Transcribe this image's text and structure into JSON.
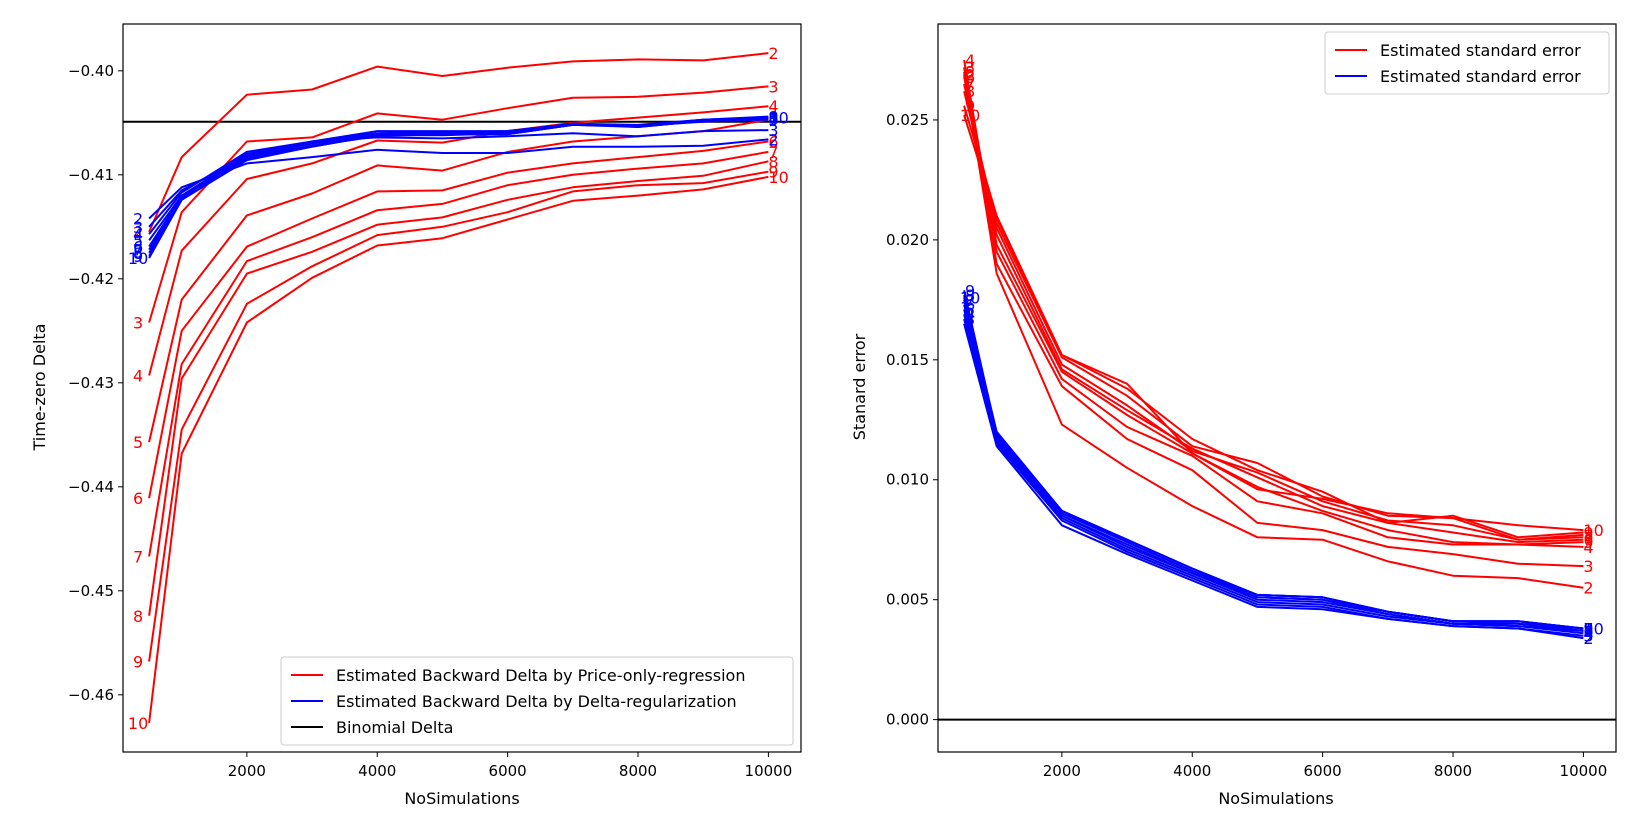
{
  "chart_data": [
    {
      "type": "line",
      "title": "",
      "xlabel": "NoSimulations",
      "ylabel": "Time-zero Delta",
      "xlim": [
        100,
        10500
      ],
      "ylim": [
        -0.4655,
        -0.3955
      ],
      "grid": false,
      "legend_position": "lower-right",
      "x": [
        500,
        1000,
        2000,
        3000,
        4000,
        5000,
        6000,
        7000,
        8000,
        9000,
        10000
      ],
      "xticks": [
        2000,
        4000,
        6000,
        8000,
        10000
      ],
      "yticks": [
        -0.46,
        -0.45,
        -0.44,
        -0.43,
        -0.42,
        -0.41,
        -0.4
      ],
      "ytick_labels": [
        "−0.46",
        "−0.45",
        "−0.44",
        "−0.43",
        "−0.42",
        "−0.41",
        "−0.40"
      ],
      "colors": {
        "price_regression": "#ff0000",
        "delta_regularization": "#0000ff",
        "binomial": "#000000"
      },
      "legend": [
        {
          "label": "Estimated Backward Delta by Price-only-regression",
          "color": "#ff0000"
        },
        {
          "label": "Estimated Backward Delta by Delta-regularization",
          "color": "#0000ff"
        },
        {
          "label": "Binomial Delta",
          "color": "#000000"
        }
      ],
      "hline": {
        "y": -0.4049,
        "color": "#000000"
      },
      "series": [
        {
          "name": "2",
          "color": "#ff0000",
          "label_start": "2",
          "label_end": "2",
          "values": [
            -0.4155,
            -0.4083,
            -0.4023,
            -0.4018,
            -0.3996,
            -0.4005,
            -0.3997,
            -0.3991,
            -0.3989,
            -0.399,
            -0.3983
          ]
        },
        {
          "name": "3",
          "color": "#ff0000",
          "label_start": "3",
          "label_end": "3",
          "values": [
            -0.4242,
            -0.4136,
            -0.4068,
            -0.4064,
            -0.4041,
            -0.4047,
            -0.4036,
            -0.4026,
            -0.4025,
            -0.4021,
            -0.4015
          ]
        },
        {
          "name": "4",
          "color": "#ff0000",
          "label_start": "4",
          "label_end": "4",
          "values": [
            -0.4293,
            -0.4173,
            -0.4104,
            -0.4089,
            -0.4067,
            -0.4069,
            -0.4058,
            -0.405,
            -0.4045,
            -0.404,
            -0.4034
          ]
        },
        {
          "name": "5",
          "color": "#ff0000",
          "label_start": "5",
          "label_end": "5",
          "values": [
            -0.4357,
            -0.422,
            -0.4139,
            -0.4118,
            -0.4091,
            -0.4096,
            -0.4078,
            -0.4068,
            -0.4063,
            -0.4058,
            -0.4047
          ]
        },
        {
          "name": "6",
          "color": "#ff0000",
          "label_start": "6",
          "label_end": "6",
          "values": [
            -0.4411,
            -0.425,
            -0.4169,
            -0.4142,
            -0.4116,
            -0.4115,
            -0.4098,
            -0.4089,
            -0.4083,
            -0.4077,
            -0.4068
          ]
        },
        {
          "name": "7",
          "color": "#ff0000",
          "label_start": "7",
          "label_end": "7",
          "values": [
            -0.4467,
            -0.4282,
            -0.4183,
            -0.416,
            -0.4134,
            -0.4128,
            -0.411,
            -0.41,
            -0.4094,
            -0.4089,
            -0.4078
          ]
        },
        {
          "name": "8",
          "color": "#ff0000",
          "label_start": "8",
          "label_end": "8",
          "values": [
            -0.4524,
            -0.4296,
            -0.4195,
            -0.4174,
            -0.4148,
            -0.4141,
            -0.4124,
            -0.4112,
            -0.4106,
            -0.4101,
            -0.4087
          ]
        },
        {
          "name": "9",
          "color": "#ff0000",
          "label_start": "9",
          "label_end": "9",
          "values": [
            -0.4568,
            -0.4345,
            -0.4224,
            -0.4188,
            -0.4158,
            -0.415,
            -0.4136,
            -0.4116,
            -0.411,
            -0.4108,
            -0.4097
          ]
        },
        {
          "name": "10",
          "color": "#ff0000",
          "label_start": "10",
          "label_end": "10",
          "values": [
            -0.4627,
            -0.4368,
            -0.4242,
            -0.4199,
            -0.4168,
            -0.4161,
            -0.4143,
            -0.4125,
            -0.412,
            -0.4114,
            -0.4102
          ]
        },
        {
          "name": "2",
          "color": "#0000ff",
          "label_start": "2",
          "label_end": "2",
          "values": [
            -0.4142,
            -0.4112,
            -0.4089,
            -0.4083,
            -0.4076,
            -0.4079,
            -0.4079,
            -0.4073,
            -0.4073,
            -0.4072,
            -0.4066
          ]
        },
        {
          "name": "3",
          "color": "#0000ff",
          "label_start": "3",
          "label_end": "3",
          "values": [
            -0.415,
            -0.4115,
            -0.4082,
            -0.4068,
            -0.4064,
            -0.4065,
            -0.4063,
            -0.406,
            -0.4063,
            -0.4058,
            -0.4057
          ]
        },
        {
          "name": "4",
          "color": "#0000ff",
          "label_start": "4",
          "label_end": "4",
          "values": [
            -0.4157,
            -0.4117,
            -0.4078,
            -0.4068,
            -0.4058,
            -0.4058,
            -0.4058,
            -0.4051,
            -0.4053,
            -0.4049,
            -0.4046
          ]
        },
        {
          "name": "5",
          "color": "#0000ff",
          "label_start": "5",
          "label_end": "5",
          "values": [
            -0.4163,
            -0.412,
            -0.408,
            -0.4068,
            -0.406,
            -0.4059,
            -0.4058,
            -0.4052,
            -0.4053,
            -0.4048,
            -0.4047
          ]
        },
        {
          "name": "6",
          "color": "#0000ff",
          "label_start": "6",
          "label_end": "6",
          "values": [
            -0.4169,
            -0.4121,
            -0.4082,
            -0.407,
            -0.4061,
            -0.4059,
            -0.4059,
            -0.4051,
            -0.4054,
            -0.4048,
            -0.4045
          ]
        },
        {
          "name": "7",
          "color": "#0000ff",
          "label_start": "7",
          "label_end": "7",
          "values": [
            -0.4172,
            -0.4122,
            -0.4083,
            -0.4072,
            -0.4062,
            -0.4061,
            -0.4061,
            -0.4052,
            -0.4054,
            -0.4048,
            -0.4046
          ]
        },
        {
          "name": "8",
          "color": "#0000ff",
          "label_start": "8",
          "label_end": "8",
          "values": [
            -0.4175,
            -0.4123,
            -0.4085,
            -0.4072,
            -0.4063,
            -0.4061,
            -0.4061,
            -0.4052,
            -0.4053,
            -0.4047,
            -0.4045
          ]
        },
        {
          "name": "9",
          "color": "#0000ff",
          "label_start": "9",
          "label_end": "9",
          "values": [
            -0.4178,
            -0.4124,
            -0.4085,
            -0.4073,
            -0.4062,
            -0.4062,
            -0.406,
            -0.4051,
            -0.4053,
            -0.4047,
            -0.4044
          ]
        },
        {
          "name": "10",
          "color": "#0000ff",
          "label_start": "10",
          "label_end": "10",
          "values": [
            -0.418,
            -0.4124,
            -0.4086,
            -0.4073,
            -0.4062,
            -0.4061,
            -0.406,
            -0.4051,
            -0.4052,
            -0.4047,
            -0.4045
          ]
        }
      ]
    },
    {
      "type": "line",
      "title": "",
      "xlabel": "NoSimulations",
      "ylabel": "Stanard error",
      "xlim": [
        100,
        10500
      ],
      "ylim": [
        -0.00135,
        0.029
      ],
      "grid": false,
      "legend_position": "upper-right",
      "x": [
        500,
        1000,
        2000,
        3000,
        4000,
        5000,
        6000,
        7000,
        8000,
        9000,
        10000
      ],
      "xticks": [
        2000,
        4000,
        6000,
        8000,
        10000
      ],
      "yticks": [
        0.0,
        0.005,
        0.01,
        0.015,
        0.02,
        0.025
      ],
      "ytick_labels": [
        "0.000",
        "0.005",
        "0.010",
        "0.015",
        "0.020",
        "0.025"
      ],
      "colors": {
        "price_regression": "#ff0000",
        "delta_regularization": "#0000ff",
        "zero_line": "#000000"
      },
      "legend": [
        {
          "label": "Estimated standard error",
          "color": "#ff0000"
        },
        {
          "label": "Estimated standard error",
          "color": "#0000ff"
        }
      ],
      "hline": {
        "y": 0.0,
        "color": "#000000"
      },
      "series": [
        {
          "name": "2",
          "color": "#ff0000",
          "label_start": "2",
          "label_end": "2",
          "values": [
            0.0269,
            0.0186,
            0.0123,
            0.0105,
            0.0089,
            0.0076,
            0.0075,
            0.0066,
            0.006,
            0.0059,
            0.0055
          ]
        },
        {
          "name": "3",
          "color": "#ff0000",
          "label_start": "3",
          "label_end": "3",
          "values": [
            0.0272,
            0.019,
            0.0139,
            0.0117,
            0.0104,
            0.0082,
            0.0079,
            0.0072,
            0.0069,
            0.0065,
            0.0064
          ]
        },
        {
          "name": "4",
          "color": "#ff0000",
          "label_start": "4",
          "label_end": "4",
          "values": [
            0.0275,
            0.0195,
            0.0142,
            0.0122,
            0.011,
            0.0091,
            0.0086,
            0.0076,
            0.0073,
            0.0073,
            0.0072
          ]
        },
        {
          "name": "5",
          "color": "#ff0000",
          "label_start": "5",
          "label_end": "5",
          "values": [
            0.027,
            0.0198,
            0.0145,
            0.0127,
            0.0111,
            0.0097,
            0.0087,
            0.0079,
            0.0074,
            0.0073,
            0.0074
          ]
        },
        {
          "name": "6",
          "color": "#ff0000",
          "label_start": "6",
          "label_end": "6",
          "values": [
            0.0268,
            0.0202,
            0.0146,
            0.0129,
            0.0113,
            0.0101,
            0.0089,
            0.0082,
            0.0078,
            0.0074,
            0.0075
          ]
        },
        {
          "name": "7",
          "color": "#ff0000",
          "label_start": "7",
          "label_end": "7",
          "values": [
            0.0265,
            0.0205,
            0.0148,
            0.0131,
            0.0112,
            0.0103,
            0.0091,
            0.0083,
            0.0081,
            0.0075,
            0.0076
          ]
        },
        {
          "name": "8",
          "color": "#ff0000",
          "label_start": "8",
          "label_end": "8",
          "values": [
            0.0262,
            0.0207,
            0.0151,
            0.0135,
            0.0114,
            0.0107,
            0.0093,
            0.0085,
            0.0084,
            0.0075,
            0.0077
          ]
        },
        {
          "name": "9",
          "color": "#ff0000",
          "label_start": "9",
          "label_end": "9",
          "values": [
            0.0256,
            0.021,
            0.0152,
            0.0138,
            0.0117,
            0.0104,
            0.0095,
            0.0082,
            0.0085,
            0.0076,
            0.0078
          ]
        },
        {
          "name": "10",
          "color": "#ff0000",
          "label_start": "10",
          "label_end": "10",
          "values": [
            0.0252,
            0.0209,
            0.0152,
            0.014,
            0.0111,
            0.0096,
            0.0092,
            0.0086,
            0.0084,
            0.0081,
            0.0079
          ]
        },
        {
          "name": "2",
          "color": "#0000ff",
          "label_start": "2",
          "label_end": "2",
          "values": [
            0.0165,
            0.0114,
            0.0081,
            0.0069,
            0.0058,
            0.0047,
            0.0046,
            0.0042,
            0.0039,
            0.0038,
            0.0034
          ]
        },
        {
          "name": "3",
          "color": "#0000ff",
          "label_start": "3",
          "label_end": "3",
          "values": [
            0.0167,
            0.0115,
            0.0083,
            0.007,
            0.0059,
            0.0048,
            0.0047,
            0.0042,
            0.0039,
            0.0038,
            0.0035
          ]
        },
        {
          "name": "4",
          "color": "#0000ff",
          "label_start": "4",
          "label_end": "4",
          "values": [
            0.0169,
            0.0116,
            0.0084,
            0.0071,
            0.006,
            0.0049,
            0.0048,
            0.0043,
            0.004,
            0.0039,
            0.0036
          ]
        },
        {
          "name": "5",
          "color": "#0000ff",
          "label_start": "5",
          "label_end": "5",
          "values": [
            0.0171,
            0.0117,
            0.0085,
            0.0072,
            0.0061,
            0.005,
            0.0049,
            0.0044,
            0.004,
            0.0039,
            0.0037
          ]
        },
        {
          "name": "6",
          "color": "#0000ff",
          "label_start": "6",
          "label_end": "6",
          "values": [
            0.0173,
            0.0118,
            0.0085,
            0.0073,
            0.0061,
            0.0051,
            0.005,
            0.0044,
            0.004,
            0.004,
            0.0037
          ]
        },
        {
          "name": "7",
          "color": "#0000ff",
          "label_start": "7",
          "label_end": "7",
          "values": [
            0.0175,
            0.0118,
            0.0086,
            0.0074,
            0.0062,
            0.0051,
            0.005,
            0.0045,
            0.0041,
            0.004,
            0.0038
          ]
        },
        {
          "name": "8",
          "color": "#0000ff",
          "label_start": "8",
          "label_end": "8",
          "values": [
            0.0177,
            0.0119,
            0.0087,
            0.0074,
            0.0062,
            0.0052,
            0.0051,
            0.0045,
            0.0041,
            0.0041,
            0.0038
          ]
        },
        {
          "name": "9",
          "color": "#0000ff",
          "label_start": "9",
          "label_end": "9",
          "values": [
            0.0179,
            0.0119,
            0.0087,
            0.0075,
            0.0063,
            0.0052,
            0.0051,
            0.0045,
            0.0041,
            0.0041,
            0.0038
          ]
        },
        {
          "name": "10",
          "color": "#0000ff",
          "label_start": "10",
          "label_end": "10",
          "values": [
            0.0176,
            0.012,
            0.0087,
            0.0075,
            0.0063,
            0.0052,
            0.0051,
            0.0045,
            0.0041,
            0.0041,
            0.0038
          ]
        }
      ]
    }
  ]
}
